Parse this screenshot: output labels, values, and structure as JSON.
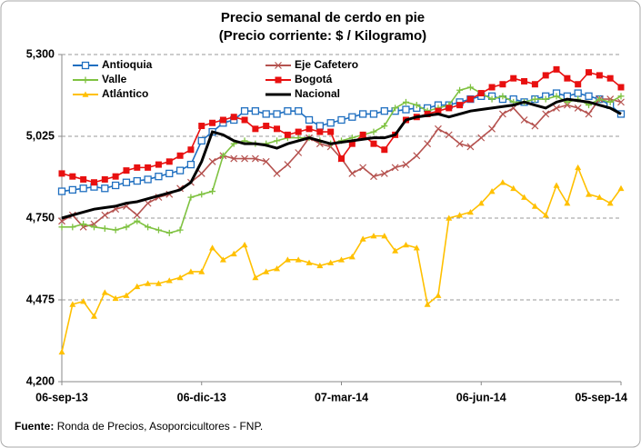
{
  "chart_data": {
    "type": "line",
    "title": "Precio semanal de cerdo en pie",
    "subtitle": "(Precio corriente: $ / Kilogramo)",
    "categories": [
      "06-sep-13",
      null,
      null,
      null,
      null,
      null,
      null,
      null,
      null,
      null,
      null,
      null,
      null,
      "06-dic-13",
      null,
      null,
      null,
      null,
      null,
      null,
      null,
      null,
      null,
      null,
      null,
      null,
      "07-mar-14",
      null,
      null,
      null,
      null,
      null,
      null,
      null,
      null,
      null,
      null,
      null,
      null,
      "06-jun-14",
      null,
      null,
      null,
      null,
      null,
      null,
      null,
      null,
      null,
      null,
      null,
      null,
      "05-sep-14"
    ],
    "ylim": [
      4200,
      5300
    ],
    "yticks": [
      {
        "value": 4200,
        "label": "4,200"
      },
      {
        "value": 4475,
        "label": "4,475"
      },
      {
        "value": 4750,
        "label": "4,750"
      },
      {
        "value": 5025,
        "label": "5,025"
      },
      {
        "value": 5300,
        "label": "5,300"
      }
    ],
    "grid": true,
    "legend": "upper left",
    "series": [
      {
        "name": "Antioquia",
        "color": "#1f6fc0",
        "marker": "square-open",
        "values": [
          4840,
          4845,
          4850,
          4855,
          4850,
          4860,
          4870,
          4875,
          4880,
          4890,
          4900,
          4910,
          4930,
          5010,
          5040,
          5070,
          5080,
          5110,
          5110,
          5100,
          5100,
          5110,
          5110,
          5080,
          5060,
          5070,
          5080,
          5090,
          5100,
          5100,
          5110,
          5110,
          5115,
          5120,
          5120,
          5130,
          5130,
          5140,
          5150,
          5160,
          5160,
          5150,
          5150,
          5140,
          5150,
          5160,
          5170,
          5160,
          5170,
          5160,
          5150,
          5130,
          5100
        ]
      },
      {
        "name": "Eje Cafetero",
        "color": "#b5524f",
        "marker": "x",
        "values": [
          4740,
          4760,
          4720,
          4730,
          4760,
          4780,
          4790,
          4760,
          4800,
          4820,
          4830,
          4850,
          4870,
          4900,
          4940,
          4960,
          4950,
          4950,
          4950,
          4940,
          4900,
          4930,
          4970,
          5020,
          5000,
          4990,
          4950,
          4900,
          4920,
          4890,
          4900,
          4920,
          4930,
          4960,
          5000,
          5050,
          5030,
          5000,
          4990,
          5020,
          5050,
          5100,
          5120,
          5080,
          5060,
          5100,
          5120,
          5130,
          5120,
          5100,
          5150,
          5150,
          5140
        ]
      },
      {
        "name": "Valle",
        "color": "#7fc241",
        "marker": "plus",
        "values": [
          4720,
          4720,
          4730,
          4720,
          4715,
          4710,
          4720,
          4740,
          4720,
          4710,
          4700,
          4710,
          4820,
          4830,
          4840,
          4960,
          5000,
          5010,
          5000,
          5000,
          5010,
          5020,
          5020,
          5020,
          5010,
          5000,
          5010,
          5020,
          5030,
          5040,
          5060,
          5120,
          5140,
          5130,
          5110,
          5120,
          5130,
          5180,
          5190,
          5170,
          5150,
          5160,
          5140,
          5140,
          5150,
          5150,
          5160,
          5140,
          5150,
          5130,
          5150,
          5140,
          5160
        ]
      },
      {
        "name": "Bogotá",
        "color": "#e81010",
        "marker": "square",
        "values": [
          4900,
          4890,
          4880,
          4870,
          4880,
          4890,
          4910,
          4920,
          4920,
          4930,
          4940,
          4960,
          4980,
          5060,
          5070,
          5080,
          5090,
          5080,
          5050,
          5060,
          5050,
          5030,
          5040,
          5050,
          5040,
          5040,
          4950,
          5000,
          5030,
          5000,
          4980,
          5030,
          5080,
          5090,
          5100,
          5110,
          5120,
          5130,
          5150,
          5170,
          5190,
          5200,
          5220,
          5210,
          5200,
          5230,
          5250,
          5220,
          5200,
          5240,
          5230,
          5220,
          5190
        ]
      },
      {
        "name": "Atlántico",
        "color": "#ffc000",
        "marker": "triangle",
        "values": [
          4300,
          4460,
          4470,
          4420,
          4500,
          4480,
          4490,
          4520,
          4530,
          4530,
          4540,
          4550,
          4570,
          4570,
          4650,
          4610,
          4630,
          4660,
          4550,
          4570,
          4580,
          4610,
          4610,
          4600,
          4590,
          4600,
          4610,
          4620,
          4680,
          4690,
          4690,
          4640,
          4660,
          4650,
          4460,
          4490,
          4750,
          4760,
          4770,
          4800,
          4840,
          4870,
          4850,
          4820,
          4790,
          4760,
          4860,
          4800,
          4920,
          4830,
          4820,
          4800,
          4850
        ]
      },
      {
        "name": "Nacional",
        "color": "#000000",
        "marker": "none",
        "values": [
          4750,
          4760,
          4770,
          4780,
          4785,
          4790,
          4800,
          4805,
          4815,
          4825,
          4835,
          4845,
          4870,
          4940,
          5040,
          5030,
          5010,
          5000,
          5000,
          4995,
          4985,
          5000,
          5010,
          5020,
          5010,
          5000,
          5005,
          5010,
          5015,
          5020,
          5020,
          5030,
          5080,
          5090,
          5095,
          5100,
          5090,
          5100,
          5110,
          5115,
          5120,
          5125,
          5130,
          5140,
          5130,
          5120,
          5140,
          5150,
          5145,
          5140,
          5130,
          5120,
          5100
        ]
      }
    ],
    "source_label": "Fuente:",
    "source": "Ronda de Precios, Asoporcicultores  - FNP."
  }
}
